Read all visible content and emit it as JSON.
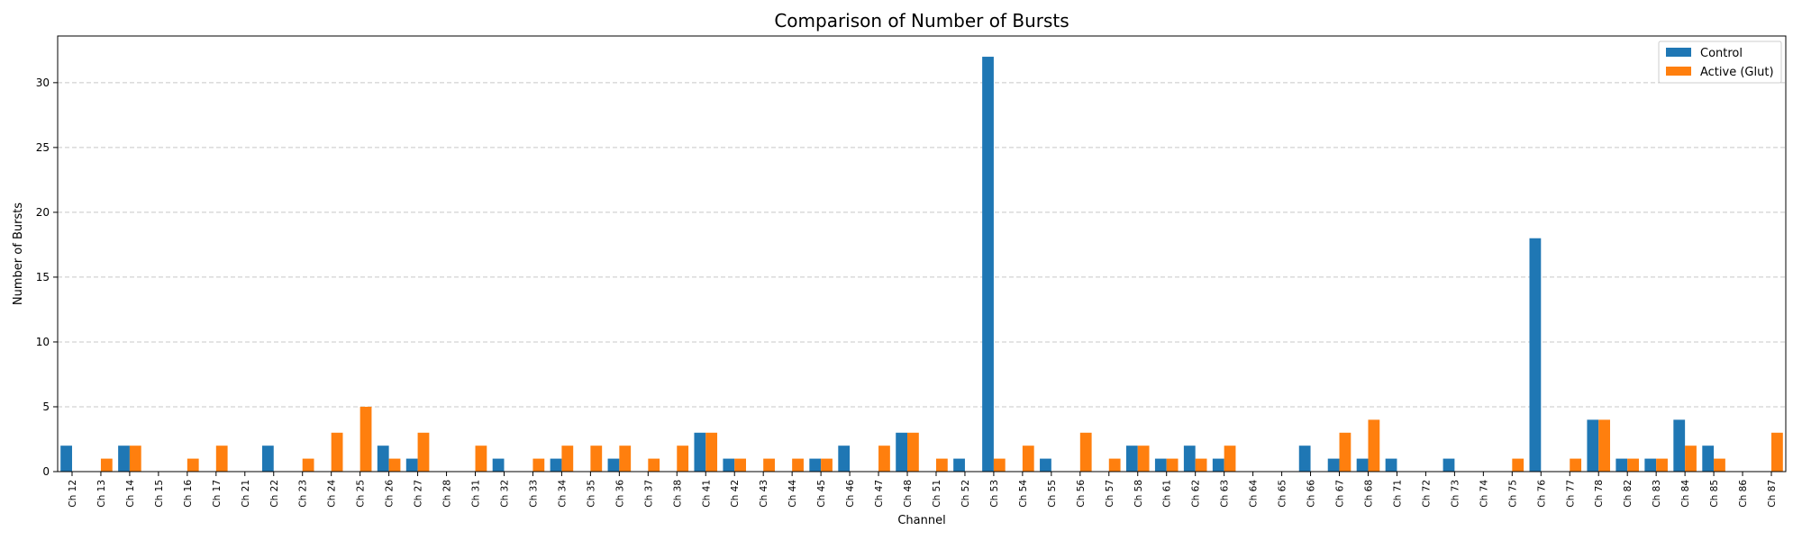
{
  "chart_data": {
    "type": "bar",
    "title": "Comparison of Number of Bursts",
    "xlabel": "Channel",
    "ylabel": "Number of Bursts",
    "ylim": [
      0,
      33.6
    ],
    "yticks": [
      0,
      5,
      10,
      15,
      20,
      25,
      30
    ],
    "grid": "y-dashed",
    "legend_position": "top-right",
    "categories": [
      "Ch 12",
      "Ch 13",
      "Ch 14",
      "Ch 15",
      "Ch 16",
      "Ch 17",
      "Ch 21",
      "Ch 22",
      "Ch 23",
      "Ch 24",
      "Ch 25",
      "Ch 26",
      "Ch 27",
      "Ch 28",
      "Ch 31",
      "Ch 32",
      "Ch 33",
      "Ch 34",
      "Ch 35",
      "Ch 36",
      "Ch 37",
      "Ch 38",
      "Ch 41",
      "Ch 42",
      "Ch 43",
      "Ch 44",
      "Ch 45",
      "Ch 46",
      "Ch 47",
      "Ch 48",
      "Ch 51",
      "Ch 52",
      "Ch 53",
      "Ch 54",
      "Ch 55",
      "Ch 56",
      "Ch 57",
      "Ch 58",
      "Ch 61",
      "Ch 62",
      "Ch 63",
      "Ch 64",
      "Ch 65",
      "Ch 66",
      "Ch 67",
      "Ch 68",
      "Ch 71",
      "Ch 72",
      "Ch 73",
      "Ch 74",
      "Ch 75",
      "Ch 76",
      "Ch 77",
      "Ch 78",
      "Ch 82",
      "Ch 83",
      "Ch 84",
      "Ch 85",
      "Ch 86",
      "Ch 87"
    ],
    "series": [
      {
        "name": "Control",
        "color": "#1f77b4",
        "values": [
          2,
          0,
          2,
          0,
          0,
          0,
          0,
          2,
          0,
          0,
          0,
          2,
          1,
          0,
          0,
          1,
          0,
          1,
          0,
          1,
          0,
          0,
          3,
          1,
          0,
          0,
          1,
          2,
          0,
          3,
          0,
          1,
          32,
          0,
          1,
          0,
          0,
          2,
          1,
          2,
          1,
          0,
          0,
          2,
          1,
          1,
          1,
          0,
          1,
          0,
          0,
          18,
          0,
          4,
          1,
          1,
          4,
          2,
          0,
          0
        ]
      },
      {
        "name": "Active (Glut)",
        "color": "#ff7f0e",
        "values": [
          0,
          1,
          2,
          0,
          1,
          2,
          0,
          0,
          1,
          3,
          5,
          1,
          3,
          0,
          2,
          0,
          1,
          2,
          2,
          2,
          1,
          2,
          3,
          1,
          1,
          1,
          1,
          0,
          2,
          3,
          1,
          0,
          1,
          2,
          0,
          3,
          1,
          2,
          1,
          1,
          2,
          0,
          0,
          0,
          3,
          4,
          0,
          0,
          0,
          0,
          1,
          0,
          1,
          4,
          1,
          1,
          2,
          1,
          0,
          3
        ]
      }
    ]
  }
}
